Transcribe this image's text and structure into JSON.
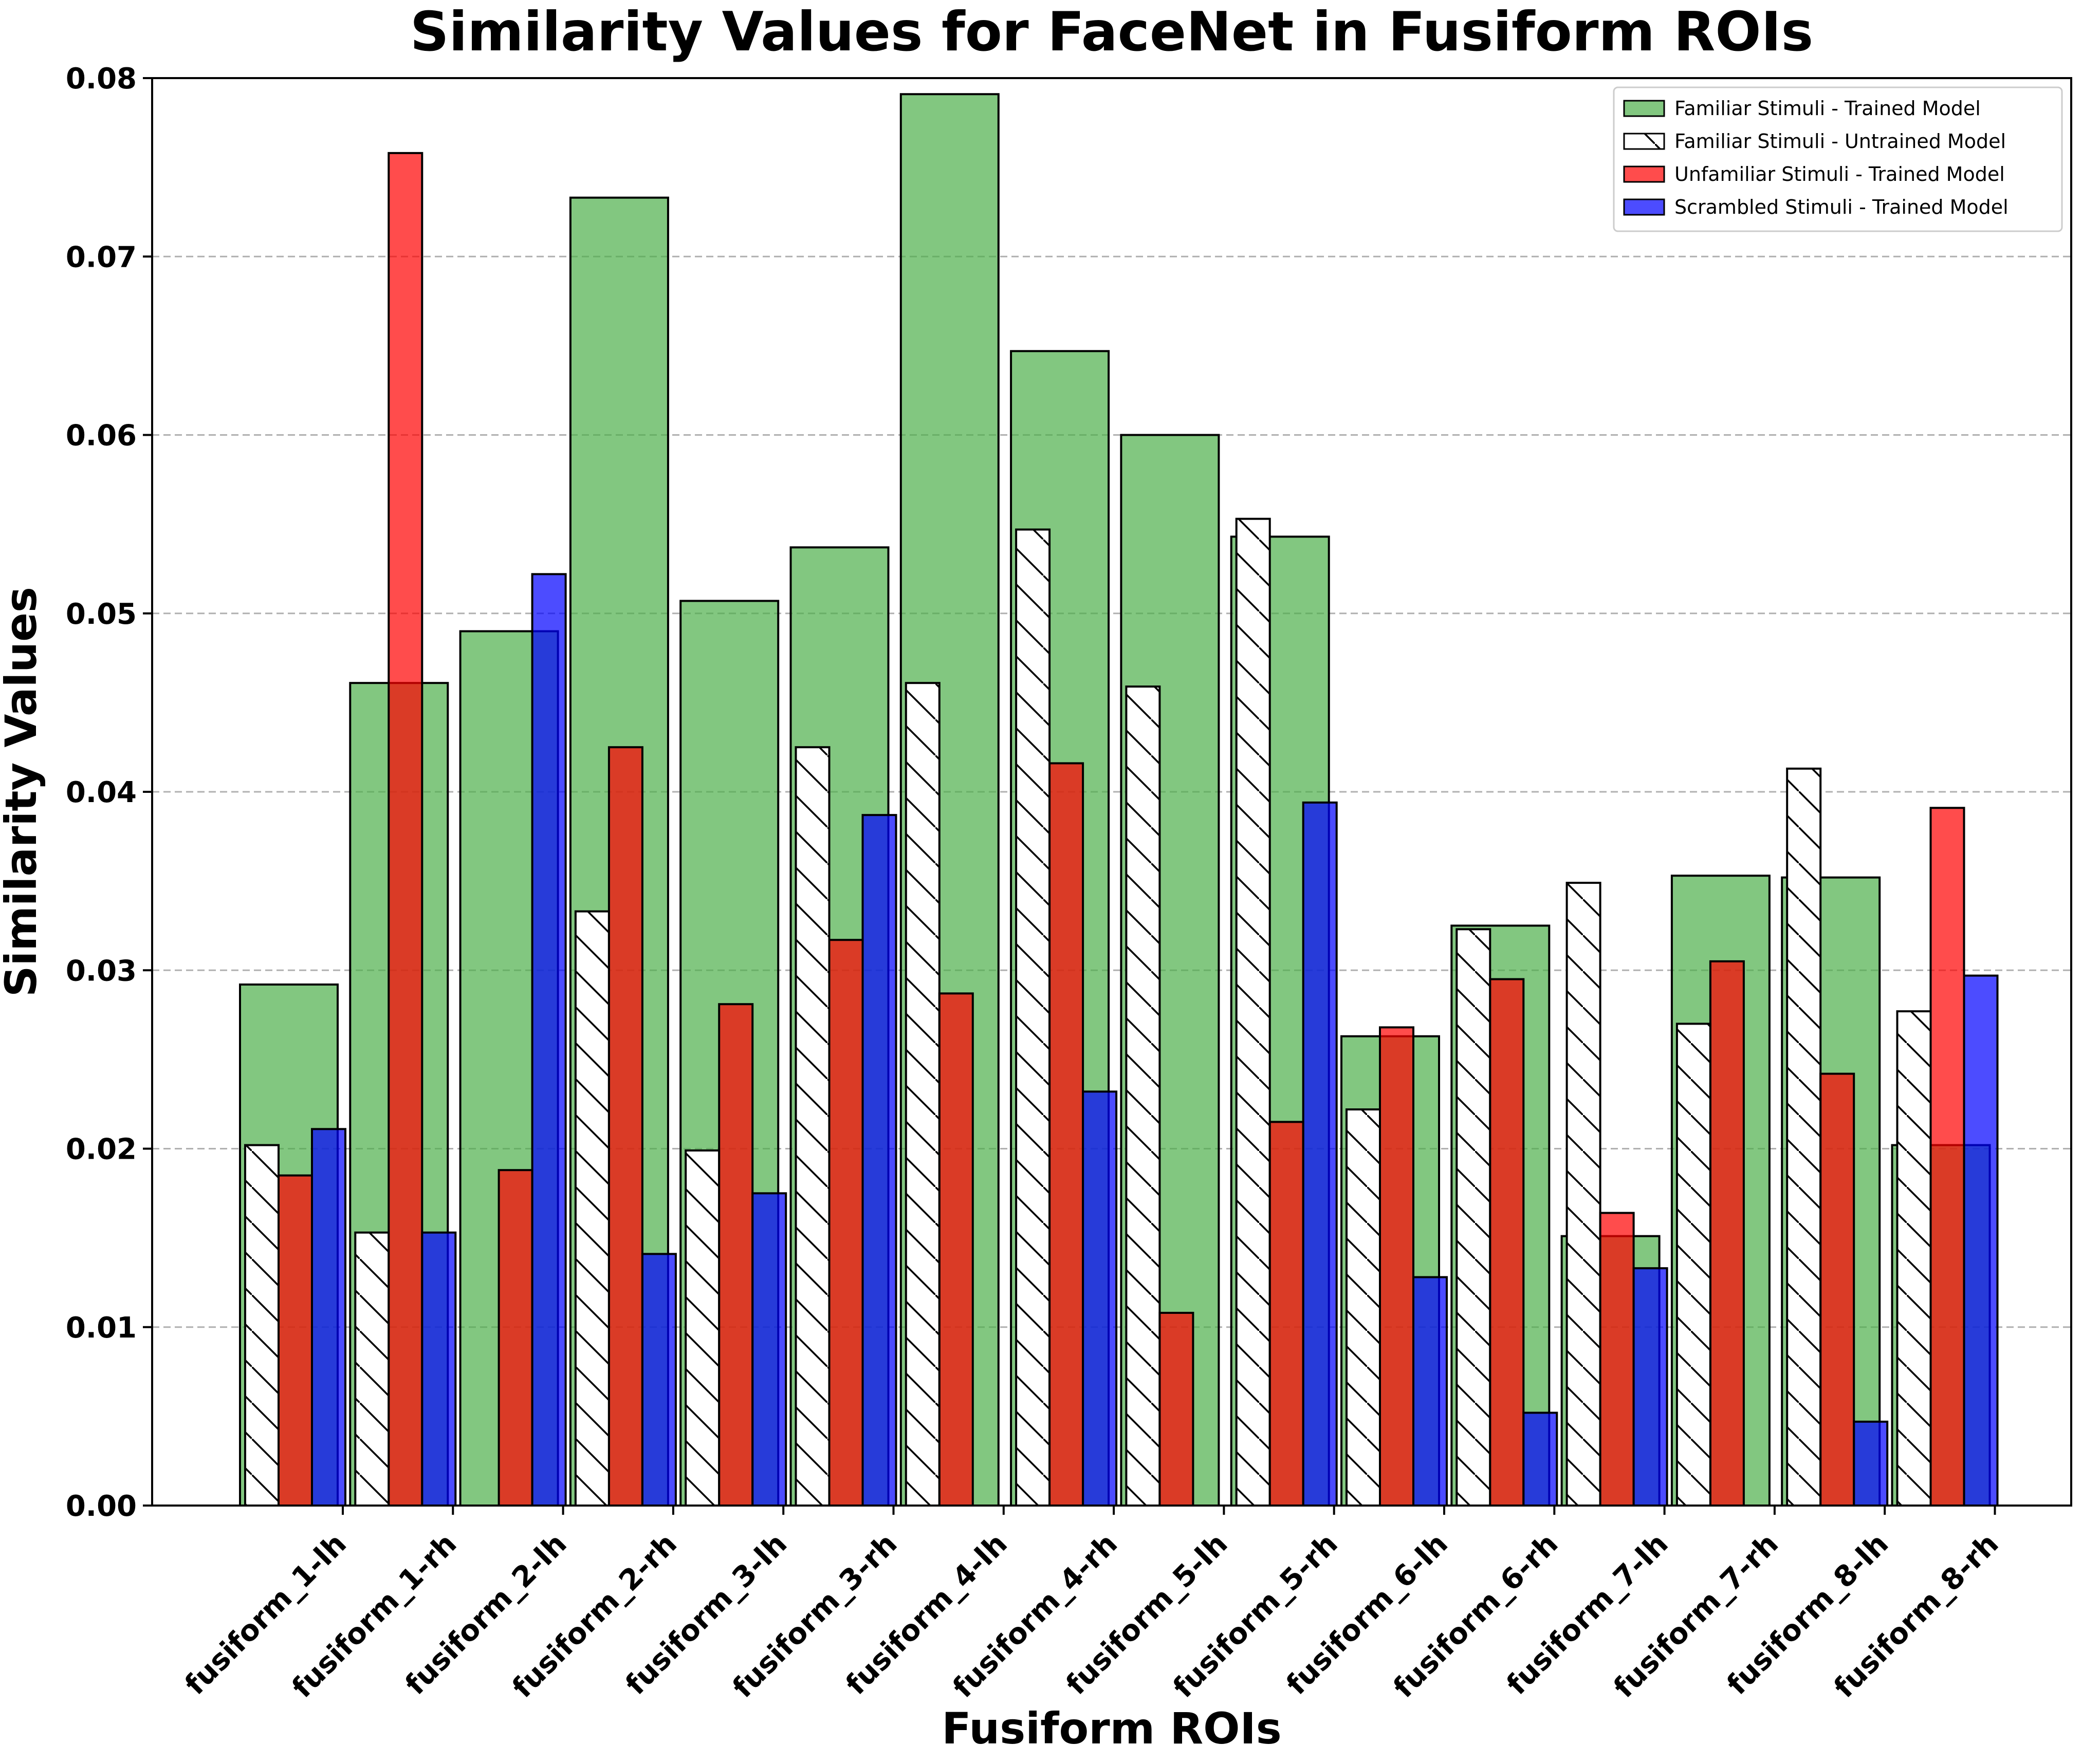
{
  "chart_data": {
    "type": "bar",
    "title": "Similarity Values for FaceNet in Fusiform ROIs",
    "xlabel": "Fusiform ROIs",
    "ylabel": "Similarity Values",
    "ylim": [
      0,
      0.08
    ],
    "yticks": [
      "0.00",
      "0.01",
      "0.02",
      "0.03",
      "0.04",
      "0.05",
      "0.06",
      "0.07",
      "0.08"
    ],
    "grid": "y-dashed",
    "legend_position": "top-right",
    "categories": [
      "fusiform_1-lh",
      "fusiform_1-rh",
      "fusiform_2-lh",
      "fusiform_2-rh",
      "fusiform_3-lh",
      "fusiform_3-rh",
      "fusiform_4-lh",
      "fusiform_4-rh",
      "fusiform_5-lh",
      "fusiform_5-rh",
      "fusiform_6-lh",
      "fusiform_6-rh",
      "fusiform_7-lh",
      "fusiform_7-rh",
      "fusiform_8-lh",
      "fusiform_8-rh"
    ],
    "series": [
      {
        "name": "Familiar Stimuli - Trained Model",
        "color": "#4daf4a",
        "style": "solid",
        "values": [
          0.0292,
          0.0461,
          0.049,
          0.0733,
          0.0507,
          0.0537,
          0.0791,
          0.0647,
          0.06,
          0.0543,
          0.0263,
          0.0325,
          0.0151,
          0.0353,
          0.0352,
          0.0202
        ]
      },
      {
        "name": "Familiar Stimuli - Untrained Model",
        "color": "#ffffff",
        "style": "hatched",
        "values": [
          0.0202,
          0.0153,
          0.0,
          0.0333,
          0.0199,
          0.0425,
          0.0461,
          0.0547,
          0.0459,
          0.0553,
          0.0222,
          0.0323,
          0.0349,
          0.027,
          0.0413,
          0.0277
        ]
      },
      {
        "name": "Unfamiliar Stimuli - Trained Model",
        "color": "#ff0000",
        "style": "solid",
        "values": [
          0.0185,
          0.0758,
          0.0188,
          0.0425,
          0.0281,
          0.0317,
          0.0287,
          0.0416,
          0.0108,
          0.0215,
          0.0268,
          0.0295,
          0.0164,
          0.0305,
          0.0242,
          0.0391
        ]
      },
      {
        "name": "Scrambled Stimuli - Trained Model",
        "color": "#0000ff",
        "style": "solid",
        "values": [
          0.0211,
          0.0153,
          0.0522,
          0.0141,
          0.0175,
          0.0387,
          0.0,
          0.0232,
          0.0,
          0.0394,
          0.0128,
          0.0052,
          0.0133,
          0.0,
          0.0047,
          0.0297
        ]
      }
    ]
  }
}
